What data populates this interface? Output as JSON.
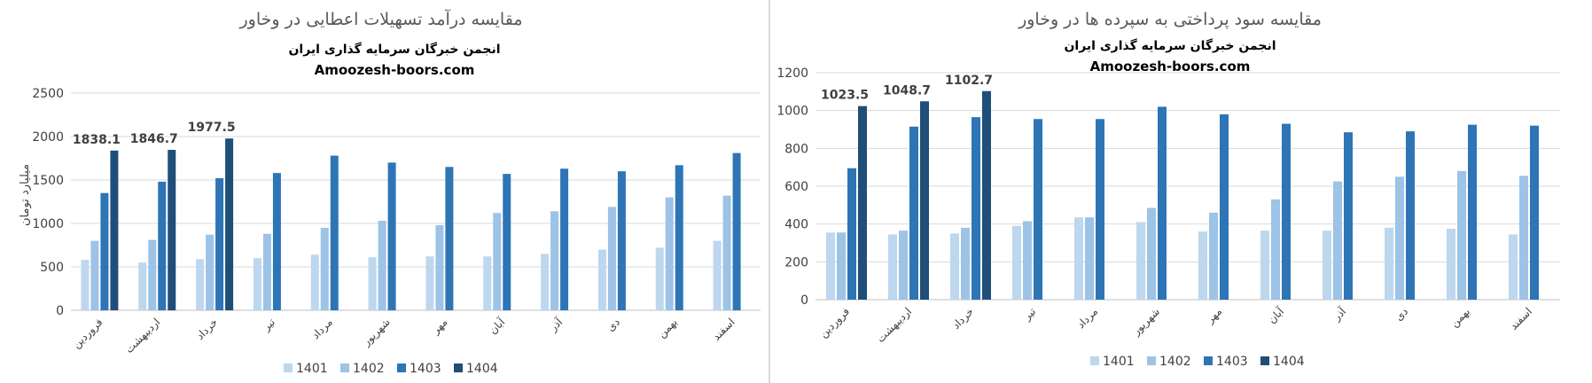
{
  "colors": {
    "1401": "#bdd7ee",
    "1402": "#9dc3e6",
    "1403": "#2e75b6",
    "1404": "#1f4e79",
    "grid": "#d9d9d9",
    "axis": "#bfbfbf",
    "title": "#595959",
    "text": "#404040"
  },
  "charts": [
    {
      "title": "مقایسه درآمد تسهیلات اعطایی در وخاور",
      "watermark_line1": "انجمن خبرگان سرمایه گذاری ایران",
      "watermark_line2": "Amoozesh-boors.com",
      "ylabel": "میلیارد تومان",
      "legend": [
        "1401",
        "1402",
        "1403",
        "1404"
      ]
    },
    {
      "title": "مقایسه سود پرداختی به سپرده ها در وخاور",
      "watermark_line1": "انجمن خبرگان سرمایه گذاری ایران",
      "watermark_line2": "Amoozesh-boors.com",
      "ylabel": "",
      "legend": [
        "1401",
        "1402",
        "1403",
        "1404"
      ]
    }
  ],
  "chart_data": [
    {
      "type": "bar",
      "title": "مقایسه درآمد تسهیلات اعطایی در وخاور",
      "ylabel": "میلیارد تومان",
      "xlabel": "",
      "ylim": [
        0,
        2500
      ],
      "yticks": [
        0,
        500,
        1000,
        1500,
        2000,
        2500
      ],
      "grid": true,
      "legend_position": "bottom",
      "categories": [
        "فروردین",
        "اردیبهشت",
        "خرداد",
        "تیر",
        "مرداد",
        "شهریور",
        "مهر",
        "آبان",
        "آذر",
        "دی",
        "بهمن",
        "اسفند"
      ],
      "series": [
        {
          "name": "1401",
          "values": [
            580,
            550,
            590,
            600,
            640,
            610,
            620,
            620,
            650,
            700,
            720,
            800
          ]
        },
        {
          "name": "1402",
          "values": [
            800,
            810,
            870,
            880,
            950,
            1030,
            980,
            1120,
            1140,
            1190,
            1300,
            1320
          ]
        },
        {
          "name": "1403",
          "values": [
            1350,
            1480,
            1520,
            1580,
            1780,
            1700,
            1650,
            1570,
            1630,
            1600,
            1670,
            1810
          ]
        },
        {
          "name": "1404",
          "values": [
            1838.1,
            1846.7,
            1977.5,
            null,
            null,
            null,
            null,
            null,
            null,
            null,
            null,
            null
          ]
        }
      ],
      "data_labels": [
        {
          "series": "1404",
          "index": 0,
          "text": "1838.1"
        },
        {
          "series": "1404",
          "index": 1,
          "text": "1846.7"
        },
        {
          "series": "1404",
          "index": 2,
          "text": "1977.5"
        }
      ]
    },
    {
      "type": "bar",
      "title": "مقایسه سود پرداختی به سپرده ها در وخاور",
      "ylabel": "",
      "xlabel": "",
      "ylim": [
        0,
        1200
      ],
      "yticks": [
        0,
        200,
        400,
        600,
        800,
        1000,
        1200
      ],
      "grid": true,
      "legend_position": "bottom",
      "categories": [
        "فروردین",
        "اردیبهشت",
        "خرداد",
        "تیر",
        "مرداد",
        "شهریور",
        "مهر",
        "آبان",
        "آذر",
        "دی",
        "بهمن",
        "اسفند"
      ],
      "series": [
        {
          "name": "1401",
          "values": [
            355,
            345,
            350,
            390,
            435,
            410,
            360,
            365,
            365,
            380,
            375,
            345
          ]
        },
        {
          "name": "1402",
          "values": [
            355,
            365,
            380,
            415,
            435,
            485,
            460,
            530,
            625,
            650,
            680,
            655
          ]
        },
        {
          "name": "1403",
          "values": [
            695,
            915,
            965,
            955,
            955,
            1020,
            980,
            930,
            885,
            890,
            925,
            920
          ]
        },
        {
          "name": "1404",
          "values": [
            1023.5,
            1048.7,
            1102.7,
            null,
            null,
            null,
            null,
            null,
            null,
            null,
            null,
            null
          ]
        }
      ],
      "data_labels": [
        {
          "series": "1404",
          "index": 0,
          "text": "1023.5"
        },
        {
          "series": "1404",
          "index": 1,
          "text": "1048.7"
        },
        {
          "series": "1404",
          "index": 2,
          "text": "1102.7"
        }
      ]
    }
  ]
}
